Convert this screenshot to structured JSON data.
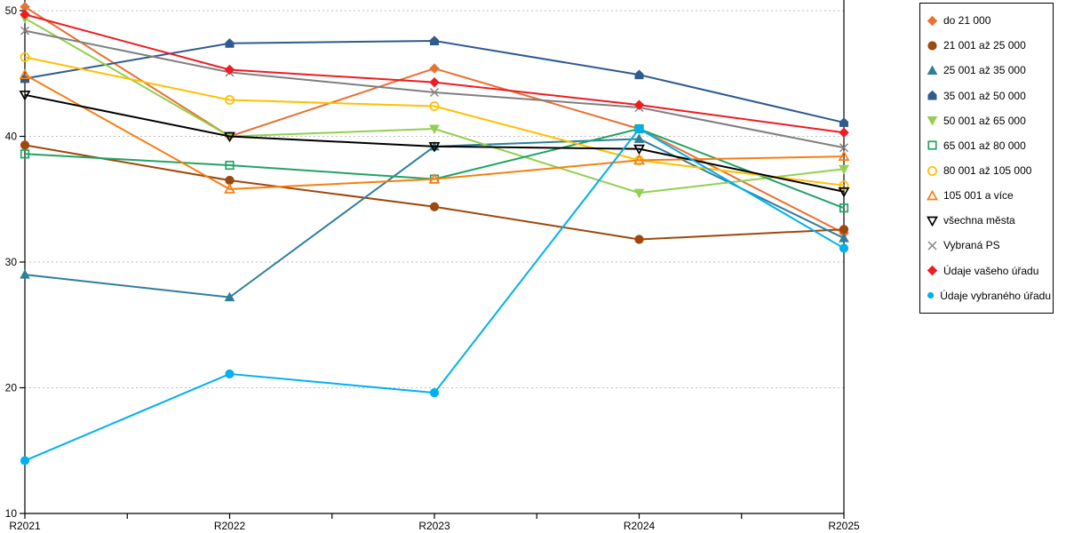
{
  "chart_data": {
    "type": "line",
    "title": "",
    "xlabel": "",
    "ylabel": "",
    "categories": [
      "R2021",
      "R2022",
      "R2023",
      "R2024",
      "R2025"
    ],
    "ylim": [
      10,
      51
    ],
    "yticks": [
      10,
      20,
      30,
      40,
      50
    ],
    "grid": "horizontal-dashed",
    "gridline_color": "#bfbfbf",
    "axis_color": "#000000",
    "legend_position": "right",
    "series": [
      {
        "name": "do 21 000",
        "color": "#E97132",
        "marker": "diamond",
        "fill": "filled",
        "values": [
          50.3,
          40.0,
          45.4,
          40.6,
          32.3
        ]
      },
      {
        "name": "21 001 až 25 000",
        "color": "#9E480E",
        "marker": "circle",
        "fill": "filled",
        "values": [
          39.3,
          36.5,
          34.4,
          31.8,
          32.6
        ]
      },
      {
        "name": "25 001 až 35 000",
        "color": "#2E7F9B",
        "marker": "triangle-up",
        "fill": "filled",
        "values": [
          29.0,
          27.2,
          39.2,
          39.8,
          31.9
        ]
      },
      {
        "name": "35 001 až 50 000",
        "color": "#2F5B8D",
        "marker": "pentagon",
        "fill": "filled",
        "values": [
          44.6,
          47.4,
          47.6,
          44.9,
          41.1
        ]
      },
      {
        "name": "50 001 až 65 000",
        "color": "#92D050",
        "marker": "triangle-down",
        "fill": "filled",
        "values": [
          49.4,
          40.0,
          40.6,
          35.5,
          37.4
        ]
      },
      {
        "name": "65 001 až 80 000",
        "color": "#21A366",
        "marker": "square",
        "fill": "open",
        "values": [
          38.6,
          37.7,
          36.6,
          40.6,
          34.3
        ]
      },
      {
        "name": "80 001 až 105 000",
        "color": "#FFC000",
        "marker": "circle",
        "fill": "open",
        "values": [
          46.3,
          42.9,
          42.4,
          38.1,
          36.1
        ]
      },
      {
        "name": "105 001 a více",
        "color": "#F87E10",
        "marker": "triangle-up",
        "fill": "open",
        "values": [
          44.9,
          35.8,
          36.6,
          38.1,
          38.4
        ]
      },
      {
        "name": "všechna města",
        "color": "#000000",
        "marker": "triangle-down",
        "fill": "open",
        "values": [
          43.3,
          40.0,
          39.2,
          39.0,
          35.6
        ]
      },
      {
        "name": "Vybraná PS",
        "color": "#7F7F7F",
        "marker": "x",
        "fill": "open",
        "values": [
          48.4,
          45.1,
          43.5,
          42.3,
          39.1
        ]
      },
      {
        "name": "Údaje vašeho úřadu",
        "color": "#EE1C23",
        "marker": "diamond",
        "fill": "filled",
        "values": [
          49.7,
          45.3,
          44.3,
          42.5,
          40.3
        ]
      },
      {
        "name": "Údaje vybraného úřadu",
        "color": "#00B0F0",
        "marker": "circle",
        "fill": "filled",
        "values": [
          14.2,
          21.1,
          19.6,
          40.6,
          31.1
        ]
      }
    ]
  }
}
